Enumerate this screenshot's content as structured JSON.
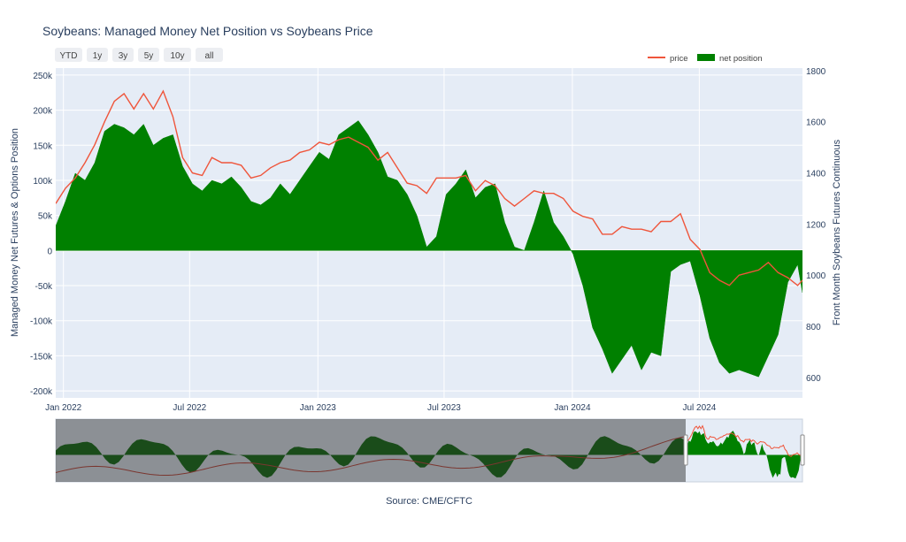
{
  "chart_data": {
    "type": "area",
    "title": "Soybeans: Managed Money Net Position vs Soybeans Price",
    "ylabel_left": "Managed Money Net Futures & Options Position",
    "ylabel_right": "Front Month Soybeans Futures Continuous",
    "source": "Source: CME/CFTC",
    "range_buttons": [
      "YTD",
      "1y",
      "3y",
      "5y",
      "10y",
      "all"
    ],
    "legend": {
      "placement": "top-right",
      "entries": [
        "price",
        "net position"
      ]
    },
    "grid": true,
    "x_tick_labels": [
      "Jan 2022",
      "Jul 2022",
      "Jan 2023",
      "Jul 2023",
      "Jan 2024",
      "Jul 2024"
    ],
    "x_ticks": [
      "2022-01-01",
      "2022-07-01",
      "2023-01-01",
      "2023-07-01",
      "2024-01-01",
      "2024-07-01"
    ],
    "xlim": [
      "2021-12-21",
      "2024-11-26"
    ],
    "ylim_left": [
      -210000,
      260000
    ],
    "ylim_right": [
      520,
      1810
    ],
    "y_left_ticks": [
      -200000,
      -150000,
      -100000,
      -50000,
      0,
      50000,
      100000,
      150000,
      200000,
      250000
    ],
    "y_left_tick_labels": [
      "-200k",
      "-150k",
      "-100k",
      "-50k",
      "0",
      "50k",
      "100k",
      "150k",
      "200k",
      "250k"
    ],
    "y_right_ticks": [
      600,
      800,
      1000,
      1200,
      1400,
      1600,
      1800
    ],
    "y_right_tick_labels": [
      "600",
      "800",
      "1000",
      "1200",
      "1400",
      "1600",
      "1800"
    ],
    "colors": {
      "price": "#ef553b",
      "net_position": "#008000",
      "plot_bg": "#e5ecf6"
    },
    "series": [
      {
        "name": "net position",
        "x": [
          "2021-12-21",
          "2022-01-04",
          "2022-01-18",
          "2022-02-01",
          "2022-02-15",
          "2022-03-01",
          "2022-03-15",
          "2022-03-29",
          "2022-04-12",
          "2022-04-26",
          "2022-05-10",
          "2022-05-24",
          "2022-06-07",
          "2022-06-21",
          "2022-07-05",
          "2022-07-19",
          "2022-08-02",
          "2022-08-16",
          "2022-08-30",
          "2022-09-13",
          "2022-09-27",
          "2022-10-11",
          "2022-10-25",
          "2022-11-08",
          "2022-11-22",
          "2022-12-06",
          "2022-12-20",
          "2023-01-03",
          "2023-01-17",
          "2023-01-31",
          "2023-02-14",
          "2023-02-28",
          "2023-03-14",
          "2023-03-28",
          "2023-04-11",
          "2023-04-25",
          "2023-05-09",
          "2023-05-23",
          "2023-06-06",
          "2023-06-20",
          "2023-07-04",
          "2023-07-18",
          "2023-08-01",
          "2023-08-15",
          "2023-08-29",
          "2023-09-12",
          "2023-09-26",
          "2023-10-10",
          "2023-10-24",
          "2023-11-07",
          "2023-11-21",
          "2023-12-05",
          "2023-12-19",
          "2024-01-02",
          "2024-01-16",
          "2024-01-30",
          "2024-02-13",
          "2024-02-27",
          "2024-03-12",
          "2024-03-26",
          "2024-04-09",
          "2024-04-23",
          "2024-05-07",
          "2024-05-21",
          "2024-06-04",
          "2024-06-18",
          "2024-07-02",
          "2024-07-16",
          "2024-07-30",
          "2024-08-13",
          "2024-08-27",
          "2024-09-10",
          "2024-09-24",
          "2024-10-08",
          "2024-10-22",
          "2024-11-05",
          "2024-11-19",
          "2024-11-26"
        ],
        "y": [
          35000,
          70000,
          110000,
          100000,
          125000,
          170000,
          180000,
          175000,
          165000,
          180000,
          150000,
          160000,
          165000,
          120000,
          95000,
          85000,
          100000,
          95000,
          105000,
          90000,
          70000,
          65000,
          75000,
          95000,
          80000,
          100000,
          120000,
          140000,
          130000,
          165000,
          175000,
          185000,
          165000,
          140000,
          105000,
          100000,
          80000,
          50000,
          5000,
          20000,
          80000,
          95000,
          115000,
          75000,
          90000,
          95000,
          40000,
          5000,
          0,
          40000,
          85000,
          40000,
          20000,
          -5000,
          -50000,
          -110000,
          -140000,
          -175000,
          -155000,
          -135000,
          -170000,
          -145000,
          -150000,
          -30000,
          -20000,
          -15000,
          -65000,
          -125000,
          -160000,
          -175000,
          -170000,
          -175000,
          -180000,
          -150000,
          -120000,
          -45000,
          -20000,
          -60000
        ]
      },
      {
        "name": "price",
        "x": [
          "2021-12-21",
          "2022-01-04",
          "2022-01-18",
          "2022-02-01",
          "2022-02-15",
          "2022-03-01",
          "2022-03-15",
          "2022-03-29",
          "2022-04-12",
          "2022-04-26",
          "2022-05-10",
          "2022-05-24",
          "2022-06-07",
          "2022-06-21",
          "2022-07-05",
          "2022-07-19",
          "2022-08-02",
          "2022-08-16",
          "2022-08-30",
          "2022-09-13",
          "2022-09-27",
          "2022-10-11",
          "2022-10-25",
          "2022-11-08",
          "2022-11-22",
          "2022-12-06",
          "2022-12-20",
          "2023-01-03",
          "2023-01-17",
          "2023-01-31",
          "2023-02-14",
          "2023-02-28",
          "2023-03-14",
          "2023-03-28",
          "2023-04-11",
          "2023-04-25",
          "2023-05-09",
          "2023-05-23",
          "2023-06-06",
          "2023-06-20",
          "2023-07-04",
          "2023-07-18",
          "2023-08-01",
          "2023-08-15",
          "2023-08-29",
          "2023-09-12",
          "2023-09-26",
          "2023-10-10",
          "2023-10-24",
          "2023-11-07",
          "2023-11-21",
          "2023-12-05",
          "2023-12-19",
          "2024-01-02",
          "2024-01-16",
          "2024-01-30",
          "2024-02-13",
          "2024-02-27",
          "2024-03-12",
          "2024-03-26",
          "2024-04-09",
          "2024-04-23",
          "2024-05-07",
          "2024-05-21",
          "2024-06-04",
          "2024-06-18",
          "2024-07-02",
          "2024-07-16",
          "2024-07-30",
          "2024-08-13",
          "2024-08-27",
          "2024-09-10",
          "2024-09-24",
          "2024-10-08",
          "2024-10-22",
          "2024-11-05",
          "2024-11-19",
          "2024-11-26"
        ],
        "y": [
          1280,
          1340,
          1380,
          1440,
          1510,
          1600,
          1680,
          1710,
          1650,
          1710,
          1650,
          1720,
          1620,
          1460,
          1400,
          1390,
          1460,
          1440,
          1440,
          1430,
          1380,
          1390,
          1420,
          1440,
          1450,
          1480,
          1490,
          1520,
          1510,
          1530,
          1540,
          1520,
          1500,
          1450,
          1480,
          1420,
          1360,
          1350,
          1320,
          1380,
          1380,
          1380,
          1390,
          1330,
          1370,
          1350,
          1300,
          1270,
          1300,
          1330,
          1320,
          1320,
          1300,
          1250,
          1230,
          1220,
          1160,
          1160,
          1190,
          1180,
          1180,
          1170,
          1210,
          1210,
          1240,
          1140,
          1100,
          1010,
          980,
          960,
          1000,
          1010,
          1020,
          1050,
          1010,
          990,
          960,
          980
        ]
      }
    ]
  }
}
